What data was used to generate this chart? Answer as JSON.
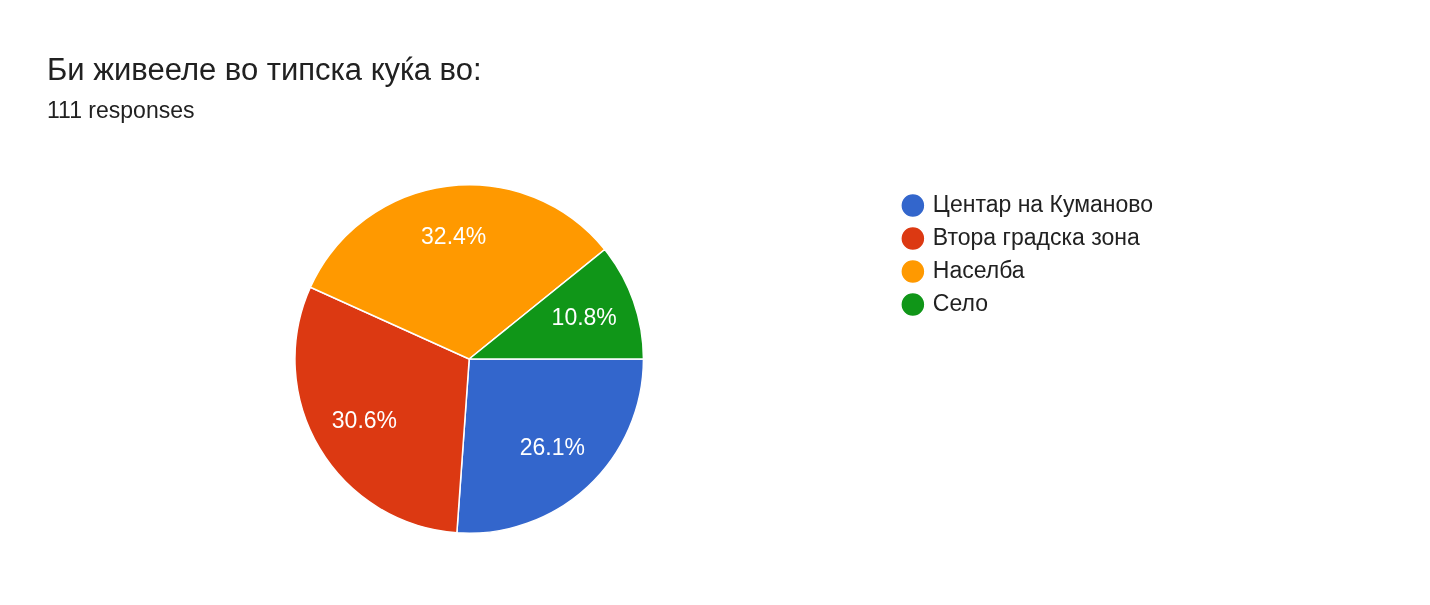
{
  "chart_data": {
    "type": "pie",
    "title": "Би живееле во типска куќа во:",
    "subtitle": "111 responses",
    "categories": [
      "Центар на Куманово",
      "Втора градска зона",
      "Населба",
      "Село"
    ],
    "values": [
      26.1,
      30.6,
      32.4,
      10.8
    ],
    "colors": [
      "#3366cc",
      "#dc3912",
      "#ff9900",
      "#109618"
    ],
    "value_labels": [
      "26.1%",
      "30.6%",
      "32.4%",
      "10.8%"
    ],
    "legend": "right"
  }
}
